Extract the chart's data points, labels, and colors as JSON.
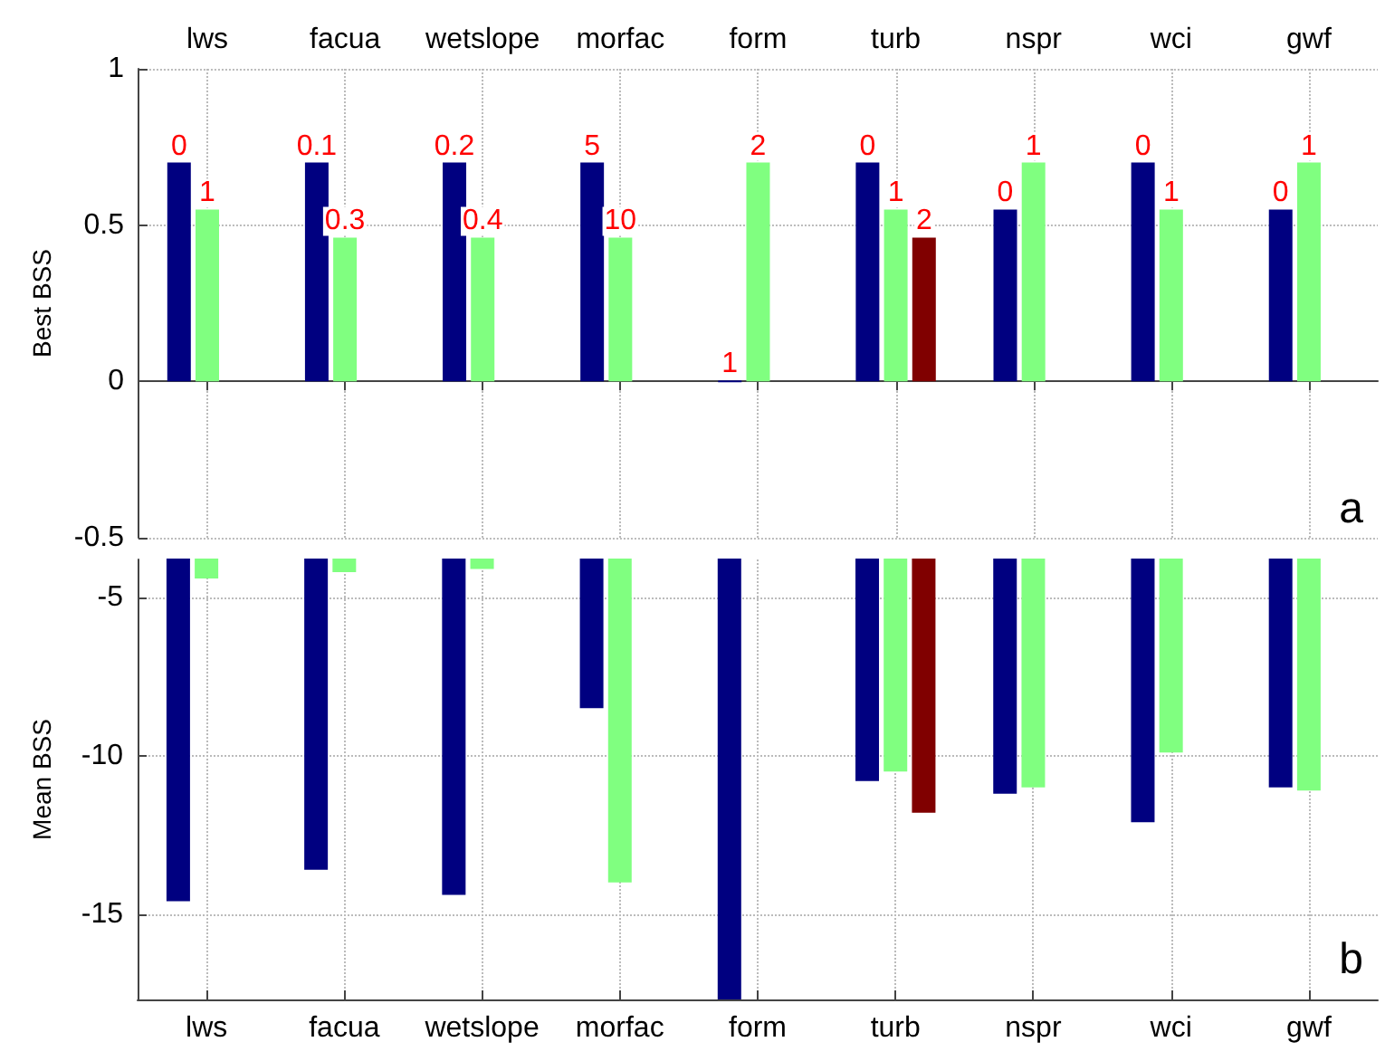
{
  "chart_data": [
    {
      "type": "bar",
      "ylabel": "Best BSS",
      "categories": [
        "lws",
        "facua",
        "wetslope",
        "morfac",
        "form",
        "turb",
        "nspr",
        "wci",
        "gwf"
      ],
      "ylim": [
        -0.5,
        1
      ],
      "yticks": [
        -0.5,
        0,
        0.5,
        1
      ],
      "grid": true,
      "annotations": [
        "0",
        "1",
        "0.1",
        "0.3",
        "0.2",
        "0.4",
        "5",
        "10",
        "1",
        "2",
        "0",
        "1",
        "2",
        "0",
        "1",
        "0",
        "1",
        "0",
        "1",
        "a"
      ],
      "series": [
        {
          "color": "#000080",
          "values": [
            0.7,
            0.7,
            0.7,
            0.7,
            0,
            0.7,
            0.55,
            0.7,
            0.55
          ]
        },
        {
          "color": "#80ff80",
          "values": [
            0.55,
            0.46,
            0.46,
            0.46,
            0.7,
            0.55,
            0.7,
            0.55,
            0.7
          ]
        },
        {
          "color": "#800000",
          "values": [
            null,
            null,
            null,
            null,
            null,
            0.46,
            null,
            null,
            null
          ]
        }
      ]
    },
    {
      "type": "bar",
      "ylabel": "Mean BSS",
      "categories": [
        "lws",
        "facua",
        "wetslope",
        "morfac",
        "form",
        "turb",
        "nspr",
        "wci",
        "gwf"
      ],
      "ylim": [
        -17.7,
        -3.8
      ],
      "yticks": [
        -15,
        -10,
        -5
      ],
      "grid": true,
      "annotations": [
        "b"
      ],
      "series": [
        {
          "color": "#000080",
          "values": [
            -14.6,
            -13.6,
            -14.4,
            -8.5,
            -17.7,
            -10.8,
            -11.2,
            -12.1,
            -11.0
          ]
        },
        {
          "color": "#80ff80",
          "values": [
            -4.4,
            -4.2,
            -4.1,
            -14.0,
            null,
            -10.5,
            -11.0,
            -9.9,
            -11.1
          ]
        },
        {
          "color": "#800000",
          "values": [
            null,
            null,
            null,
            null,
            null,
            -11.8,
            null,
            null,
            null
          ]
        }
      ]
    }
  ]
}
